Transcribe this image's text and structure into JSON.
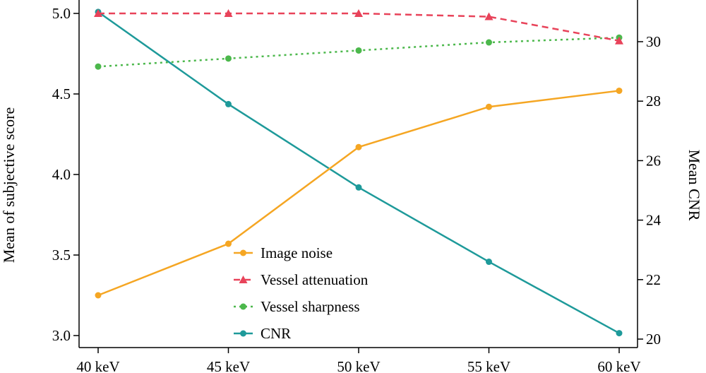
{
  "chart_data": {
    "type": "line",
    "categories": [
      "40 keV",
      "45 keV",
      "50 keV",
      "55 keV",
      "60 keV"
    ],
    "ylabel": "Mean of subjective score",
    "y2label": "Mean CNR",
    "ylim": [
      2.93,
      5.05
    ],
    "y2lim": [
      19.9,
      31.4
    ],
    "yticks": [
      3.0,
      3.5,
      4.0,
      4.5,
      5.0
    ],
    "yticklabels": [
      "3.0",
      "3.5",
      "4.0",
      "4.5",
      "5.0"
    ],
    "y2ticks": [
      20,
      22,
      24,
      26,
      28,
      30
    ],
    "y2ticklabels": [
      "20",
      "22",
      "24",
      "26",
      "28",
      "30"
    ],
    "grid": false,
    "legend": "bottom-center",
    "series": [
      {
        "name": "Image noise",
        "axis": "left",
        "color": "#F5A623",
        "dash": "solid",
        "marker": "circle",
        "values": [
          3.25,
          3.57,
          4.17,
          4.42,
          4.52
        ]
      },
      {
        "name": "Vessel attenuation",
        "axis": "left",
        "color": "#E8435A",
        "dash": "dashed",
        "marker": "triangle",
        "values": [
          5.0,
          5.0,
          5.0,
          4.98,
          4.83
        ]
      },
      {
        "name": "Vessel sharpness",
        "axis": "left",
        "color": "#4CB84C",
        "dash": "dotted",
        "marker": "circle",
        "values": [
          4.67,
          4.72,
          4.77,
          4.82,
          4.85
        ]
      },
      {
        "name": "CNR",
        "axis": "right",
        "color": "#1E9A9A",
        "dash": "solid",
        "marker": "circle",
        "values": [
          31.0,
          27.9,
          25.1,
          22.6,
          20.2
        ]
      }
    ]
  }
}
